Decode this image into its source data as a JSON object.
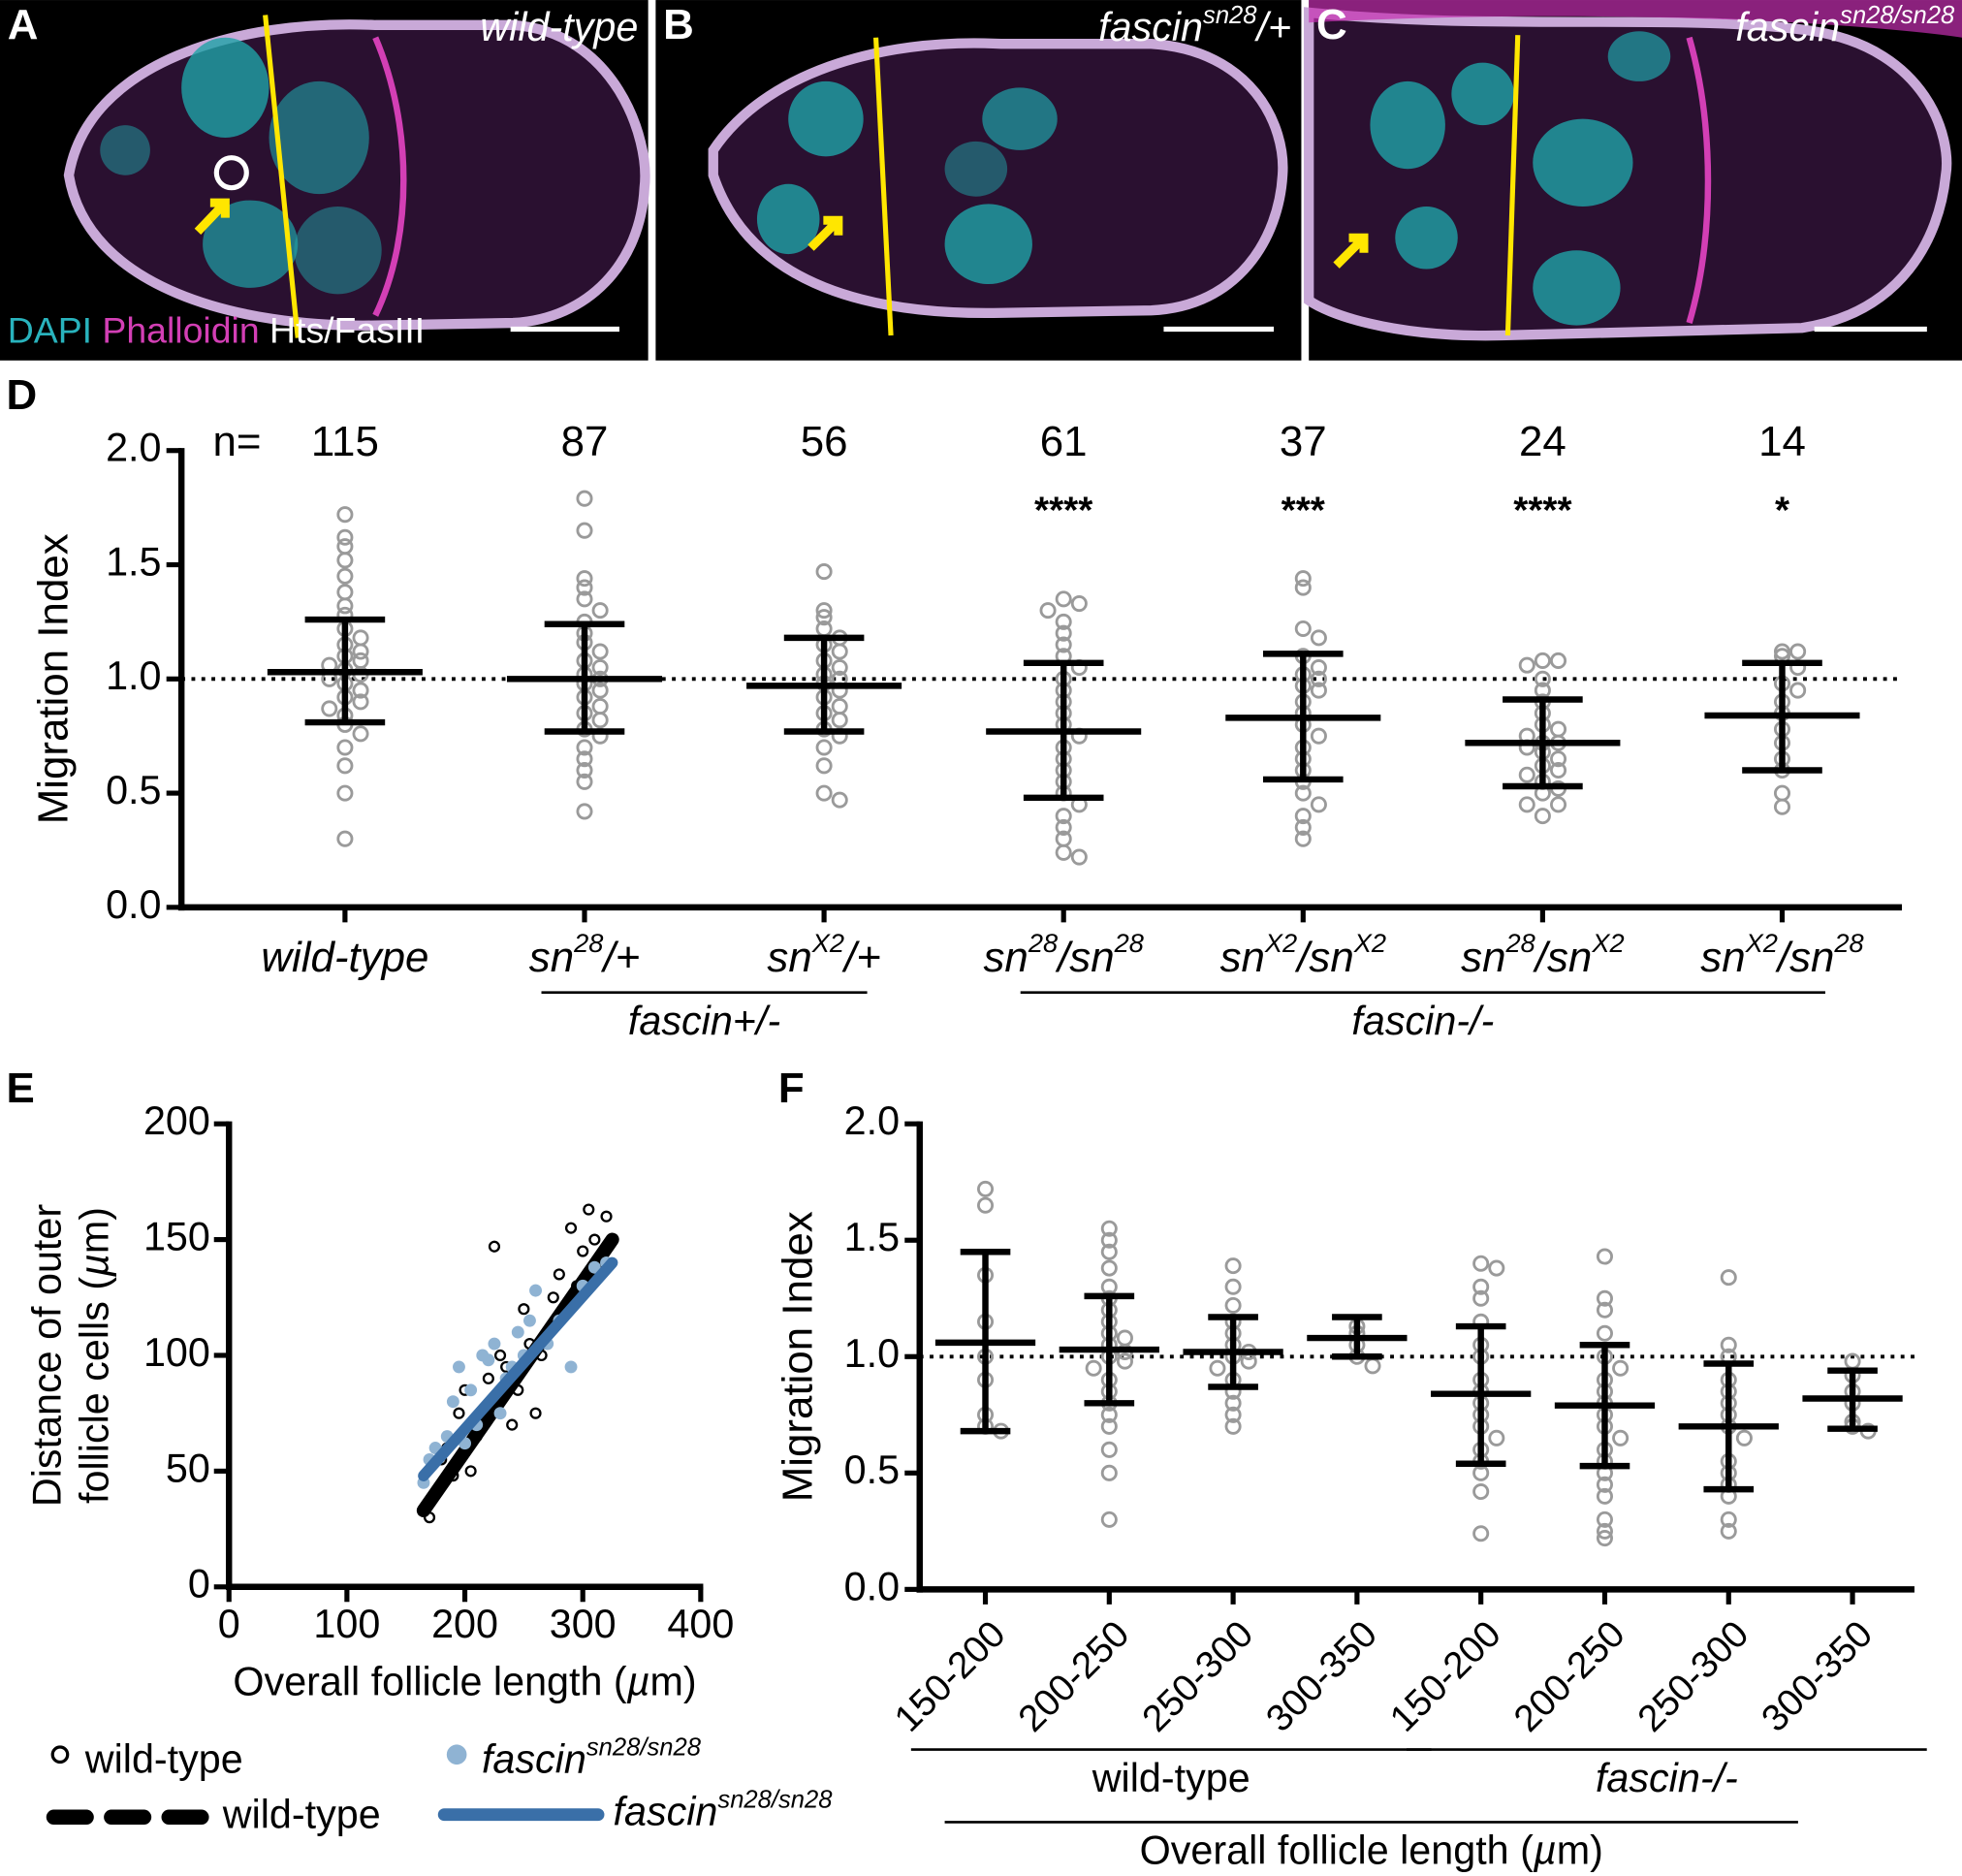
{
  "panels": [
    {
      "letter": "A",
      "genotype": [
        {
          "text": "wild-type",
          "italic": true
        }
      ]
    },
    {
      "letter": "B",
      "genotype": [
        {
          "text": "fascin",
          "italic": true
        },
        {
          "text": "sn28",
          "italic": true,
          "sup": true
        },
        {
          "text": "/+",
          "italic": true
        }
      ]
    },
    {
      "letter": "C",
      "genotype": [
        {
          "text": "fascin",
          "italic": true
        },
        {
          "text": "sn28/sn28",
          "italic": true,
          "sup": true
        }
      ]
    }
  ],
  "channels": [
    {
      "text": "DAPI",
      "color": "#29b3bd"
    },
    {
      "text": "Phalloidin",
      "color": "#d33fb5"
    },
    {
      "text": "Hts/FasIII",
      "color": "#ffffff"
    }
  ],
  "chart_data": [
    {
      "type": "dot",
      "panel": "D",
      "ylabel": "Migration Index",
      "categories": [
        [
          {
            "text": "wild-type",
            "italic": true
          }
        ],
        [
          {
            "text": "sn",
            "italic": true
          },
          {
            "text": "28",
            "italic": true,
            "sup": true
          },
          {
            "text": "/+",
            "italic": true
          }
        ],
        [
          {
            "text": "sn",
            "italic": true
          },
          {
            "text": "X2",
            "italic": true,
            "sup": true
          },
          {
            "text": "/+",
            "italic": true
          }
        ],
        [
          {
            "text": "sn",
            "italic": true
          },
          {
            "text": "28",
            "italic": true,
            "sup": true
          },
          {
            "text": "/sn",
            "italic": true
          },
          {
            "text": "28",
            "italic": true,
            "sup": true
          }
        ],
        [
          {
            "text": "sn",
            "italic": true
          },
          {
            "text": "X2",
            "italic": true,
            "sup": true
          },
          {
            "text": "/sn",
            "italic": true
          },
          {
            "text": "X2",
            "italic": true,
            "sup": true
          }
        ],
        [
          {
            "text": "sn",
            "italic": true
          },
          {
            "text": "28",
            "italic": true,
            "sup": true
          },
          {
            "text": "/sn",
            "italic": true
          },
          {
            "text": "X2",
            "italic": true,
            "sup": true
          }
        ],
        [
          {
            "text": "sn",
            "italic": true
          },
          {
            "text": "X2",
            "italic": true,
            "sup": true
          },
          {
            "text": "/sn",
            "italic": true
          },
          {
            "text": "28",
            "italic": true,
            "sup": true
          }
        ]
      ],
      "points": [
        [
          1.72,
          1.62,
          1.58,
          1.52,
          1.45,
          1.38,
          1.32,
          1.28,
          1.22,
          1.18,
          1.15,
          1.12,
          1.1,
          1.08,
          1.06,
          1.04,
          1.02,
          1.0,
          0.98,
          0.95,
          0.92,
          0.9,
          0.87,
          0.84,
          0.8,
          0.76,
          0.7,
          0.62,
          0.5,
          0.3
        ],
        [
          1.79,
          1.65,
          1.44,
          1.4,
          1.35,
          1.3,
          1.25,
          1.2,
          1.16,
          1.12,
          1.08,
          1.05,
          1.02,
          1.0,
          0.98,
          0.95,
          0.92,
          0.88,
          0.85,
          0.82,
          0.78,
          0.75,
          0.7,
          0.65,
          0.6,
          0.55,
          0.42
        ],
        [
          1.47,
          1.3,
          1.27,
          1.22,
          1.18,
          1.15,
          1.12,
          1.08,
          1.05,
          1.02,
          1.0,
          0.98,
          0.95,
          0.92,
          0.88,
          0.85,
          0.82,
          0.78,
          0.75,
          0.7,
          0.62,
          0.5,
          0.47
        ],
        [
          1.35,
          1.33,
          1.3,
          1.25,
          1.2,
          1.15,
          1.1,
          1.05,
          1.0,
          0.95,
          0.9,
          0.85,
          0.8,
          0.75,
          0.7,
          0.65,
          0.6,
          0.55,
          0.5,
          0.45,
          0.4,
          0.35,
          0.3,
          0.24,
          0.22
        ],
        [
          1.44,
          1.4,
          1.22,
          1.18,
          1.1,
          1.05,
          1.02,
          1.0,
          0.97,
          0.95,
          0.9,
          0.85,
          0.8,
          0.75,
          0.7,
          0.65,
          0.6,
          0.55,
          0.5,
          0.45,
          0.4,
          0.35,
          0.3
        ],
        [
          1.08,
          1.08,
          1.06,
          1.0,
          0.95,
          0.9,
          0.85,
          0.8,
          0.78,
          0.75,
          0.72,
          0.72,
          0.7,
          0.68,
          0.65,
          0.62,
          0.6,
          0.58,
          0.55,
          0.52,
          0.5,
          0.45,
          0.45,
          0.4
        ],
        [
          1.12,
          1.12,
          1.1,
          1.05,
          0.98,
          0.95,
          0.9,
          0.85,
          0.78,
          0.72,
          0.65,
          0.6,
          0.5,
          0.44
        ]
      ],
      "means": [
        1.03,
        1.0,
        0.97,
        0.77,
        0.83,
        0.72,
        0.84
      ],
      "upper": [
        1.26,
        1.24,
        1.18,
        1.07,
        1.11,
        0.91,
        1.07
      ],
      "lower": [
        0.81,
        0.77,
        0.77,
        0.48,
        0.56,
        0.53,
        0.6
      ],
      "ylim": [
        0,
        2
      ],
      "yticks": [
        {
          "value": 0,
          "label": "0.0"
        },
        {
          "value": 0.5,
          "label": "0.5"
        },
        {
          "value": 1,
          "label": "1.0"
        },
        {
          "value": 1.5,
          "label": "1.5"
        },
        {
          "value": 2,
          "label": "2.0"
        }
      ],
      "refline": 1,
      "n_label": "n=",
      "n": [
        115,
        87,
        56,
        61,
        37,
        24,
        14
      ],
      "significance": [
        null,
        null,
        null,
        "****",
        "***",
        "****",
        "*"
      ],
      "groups": [
        {
          "label": [
            {
              "text": "fascin+/-",
              "italic": true
            }
          ],
          "from": 1,
          "to": 2
        },
        {
          "label": [
            {
              "text": "fascin-/-",
              "italic": true
            }
          ],
          "from": 3,
          "to": 6
        }
      ]
    },
    {
      "type": "scatter",
      "panel": "E",
      "ylabel": [
        [
          {
            "text": "Distance of outer"
          }
        ],
        [
          {
            "text": "follicle cells ("
          },
          {
            "text": "µ",
            "italic": true
          },
          {
            "text": "m)"
          }
        ]
      ],
      "xlabel": [
        {
          "text": "Overall follicle length ("
        },
        {
          "text": "µ",
          "italic": true
        },
        {
          "text": "m)"
        }
      ],
      "xlim": [
        0,
        400
      ],
      "xticks": [
        0,
        100,
        200,
        300,
        400
      ],
      "ylim": [
        0,
        200
      ],
      "yticks": [
        0,
        50,
        100,
        150,
        200
      ],
      "series": [
        {
          "name": [
            {
              "text": "wild-type"
            }
          ],
          "kind": "scatter",
          "color": "#000000",
          "filled": false,
          "x": [
            170,
            175,
            180,
            185,
            190,
            195,
            200,
            205,
            210,
            215,
            220,
            225,
            228,
            230,
            235,
            240,
            245,
            250,
            255,
            260,
            265,
            270,
            275,
            280,
            290,
            295,
            300,
            305,
            310,
            315,
            320
          ],
          "y": [
            30,
            40,
            55,
            60,
            48,
            75,
            85,
            50,
            65,
            70,
            90,
            147,
            80,
            100,
            95,
            70,
            85,
            120,
            105,
            75,
            100,
            110,
            125,
            135,
            155,
            130,
            145,
            163,
            150,
            140,
            160
          ]
        },
        {
          "name": [
            {
              "text": "wild-type"
            }
          ],
          "kind": "line",
          "color": "#000000",
          "dashed": true,
          "x": [
            165,
            325
          ],
          "y": [
            33,
            150
          ]
        },
        {
          "name": [
            {
              "text": "fascin",
              "italic": true
            },
            {
              "text": "sn28/sn28",
              "italic": true,
              "sup": true
            }
          ],
          "kind": "scatter",
          "color": "#8fb3d3",
          "filled": true,
          "x": [
            165,
            170,
            175,
            180,
            185,
            190,
            195,
            200,
            205,
            210,
            215,
            220,
            225,
            230,
            235,
            240,
            245,
            250,
            255,
            260,
            270,
            280,
            290,
            300,
            310,
            320
          ],
          "y": [
            45,
            55,
            60,
            58,
            65,
            80,
            95,
            62,
            85,
            70,
            100,
            98,
            105,
            75,
            90,
            95,
            110,
            100,
            115,
            128,
            105,
            115,
            95,
            130,
            138,
            140
          ]
        },
        {
          "name": [
            {
              "text": "fascin",
              "italic": true
            },
            {
              "text": "sn28/sn28",
              "italic": true,
              "sup": true
            }
          ],
          "kind": "line",
          "color": "#3a6fa8",
          "dashed": false,
          "x": [
            165,
            325
          ],
          "y": [
            48,
            140
          ]
        }
      ]
    },
    {
      "type": "dot",
      "panel": "F",
      "ylabel": "Migration Index",
      "rotate_labels": true,
      "categories": [
        "150-200",
        "200-250",
        "250-300",
        "300-350",
        "150-200",
        "200-250",
        "250-300",
        "300-350"
      ],
      "points": [
        [
          1.72,
          1.65,
          1.35,
          1.15,
          1.0,
          0.9,
          0.75,
          0.7,
          0.68
        ],
        [
          1.55,
          1.5,
          1.45,
          1.38,
          1.3,
          1.25,
          1.2,
          1.15,
          1.1,
          1.08,
          1.05,
          1.02,
          1.0,
          0.98,
          0.95,
          0.9,
          0.85,
          0.8,
          0.75,
          0.7,
          0.6,
          0.5,
          0.3
        ],
        [
          1.39,
          1.3,
          1.22,
          1.15,
          1.1,
          1.05,
          1.02,
          1.0,
          0.98,
          0.95,
          0.9,
          0.85,
          0.8,
          0.75,
          0.7
        ],
        [
          1.13,
          1.1,
          1.05,
          1.0,
          0.96
        ],
        [
          1.4,
          1.38,
          1.3,
          1.25,
          1.15,
          1.05,
          1.0,
          0.9,
          0.85,
          0.8,
          0.75,
          0.7,
          0.65,
          0.6,
          0.55,
          0.5,
          0.42,
          0.24
        ],
        [
          1.43,
          1.25,
          1.2,
          1.1,
          1.0,
          0.95,
          0.9,
          0.85,
          0.8,
          0.75,
          0.7,
          0.65,
          0.6,
          0.55,
          0.5,
          0.45,
          0.4,
          0.3,
          0.25,
          0.22
        ],
        [
          1.34,
          1.05,
          1.0,
          0.9,
          0.85,
          0.8,
          0.75,
          0.7,
          0.65,
          0.55,
          0.5,
          0.45,
          0.4,
          0.3,
          0.25
        ],
        [
          0.98,
          0.92,
          0.85,
          0.8,
          0.72,
          0.7,
          0.68
        ]
      ],
      "means": [
        1.06,
        1.03,
        1.02,
        1.08,
        0.84,
        0.79,
        0.7,
        0.82
      ],
      "upper": [
        1.45,
        1.26,
        1.17,
        1.17,
        1.13,
        1.05,
        0.97,
        0.94
      ],
      "lower": [
        0.68,
        0.8,
        0.87,
        1.0,
        0.54,
        0.53,
        0.43,
        0.69
      ],
      "ylim": [
        0,
        2
      ],
      "yticks": [
        {
          "value": 0,
          "label": "0.0"
        },
        {
          "value": 0.5,
          "label": "0.5"
        },
        {
          "value": 1,
          "label": "1.0"
        },
        {
          "value": 1.5,
          "label": "1.5"
        },
        {
          "value": 2,
          "label": "2.0"
        }
      ],
      "refline": 1,
      "groups": [
        {
          "label": [
            {
              "text": "wild-type"
            }
          ],
          "from": 0,
          "to": 3
        },
        {
          "label": [
            {
              "text": "fascin-/-",
              "italic": true
            }
          ],
          "from": 4,
          "to": 7
        }
      ],
      "xlabel": [
        {
          "text": "Overall follicle length ("
        },
        {
          "text": "µ",
          "italic": true
        },
        {
          "text": "m)"
        }
      ]
    }
  ]
}
